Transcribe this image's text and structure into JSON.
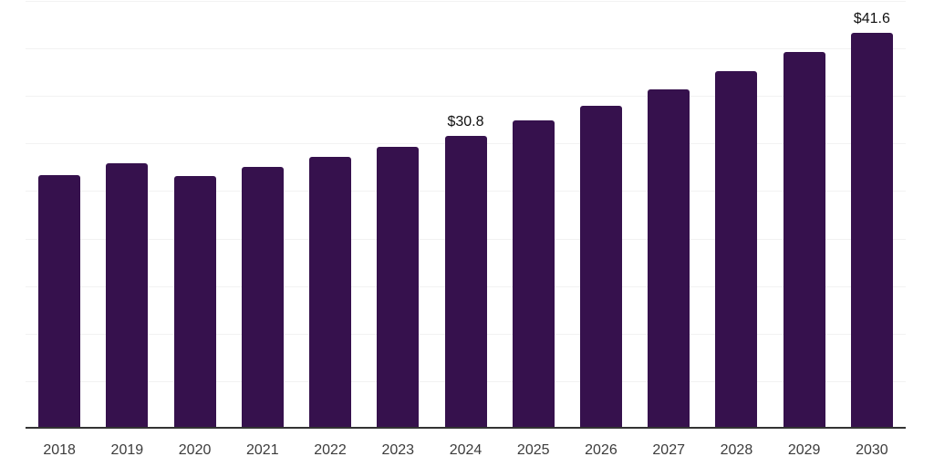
{
  "chart_data": {
    "type": "bar",
    "title": "",
    "xlabel": "",
    "ylabel": "",
    "categories": [
      "2018",
      "2019",
      "2020",
      "2021",
      "2022",
      "2023",
      "2024",
      "2025",
      "2026",
      "2027",
      "2028",
      "2029",
      "2030"
    ],
    "values": [
      26.7,
      27.9,
      26.6,
      27.5,
      28.6,
      29.7,
      30.8,
      32.4,
      34.0,
      35.7,
      37.6,
      39.6,
      41.6
    ],
    "data_labels": [
      "",
      "",
      "",
      "",
      "",
      "",
      "$30.8",
      "",
      "",
      "",
      "",
      "",
      "$41.6"
    ],
    "ylim": [
      0,
      45.1
    ],
    "y_gridline_step": 5,
    "grid": true,
    "legend": false,
    "y_axis_tick_labels_visible": false,
    "colors": {
      "bar": "#36114D",
      "gridline": "#F2F2F2",
      "axis_line": "#333333",
      "tick_label": "#3C3C3C",
      "data_label": "#111111",
      "background": "#FFFFFF"
    }
  }
}
